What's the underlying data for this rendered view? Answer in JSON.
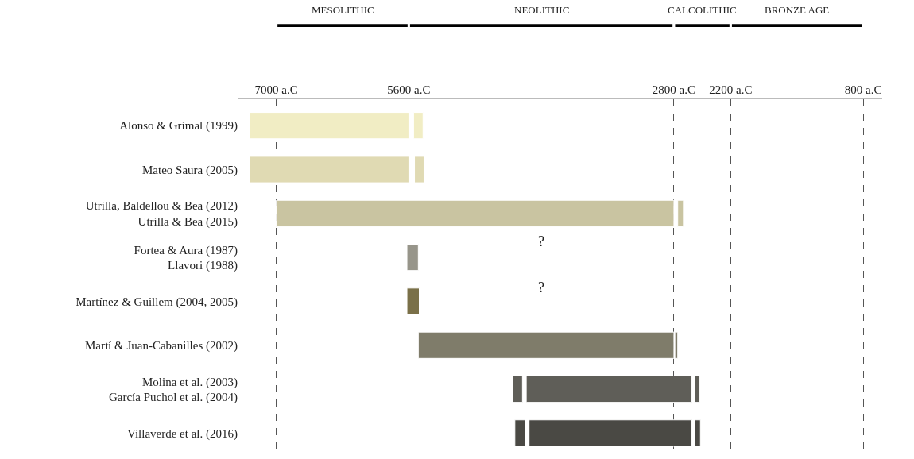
{
  "chart_data": {
    "type": "bar",
    "orientation": "horizontal",
    "categories": [
      "Alonso & Grimal (1999)",
      "Mateo Saura (2005)",
      "Utrilla, Baldellou & Bea (2012)\nUtrilla & Bea (2015)",
      "Fortea & Aura (1987)\nLlavori (1988)",
      "Martínez & Guillem (2004, 2005)",
      "Martí & Juan-Cabanilles (2002)",
      "Molina et al. (2003)\nGarcía Puchol et al. (2004)",
      "Villaverde et al. (2016)"
    ],
    "series": [
      {
        "colors": [
          "#f1edc4",
          "#e0dab3",
          "#c9c4a1",
          "#97958a",
          "#7a7048",
          "#7f7c6a",
          "#5f5e58",
          "#4a4944"
        ],
        "base": [
          5600,
          5600,
          2800,
          5500,
          5490,
          2800,
          2610,
          2610
        ],
        "values": [
          1680,
          1680,
          4200,
          120,
          130,
          2700,
          1750,
          1720
        ]
      },
      {
        "colors": [
          "#f1edc4",
          "#e0dab3",
          "#c9c4a1",
          "#97958a",
          "#7a7048",
          "#7f7c6a",
          "#5f5e58",
          "#4a4944"
        ],
        "base": [
          5450,
          5440,
          2700,
          null,
          null,
          2760,
          2530,
          2520
        ],
        "values": [
          100,
          100,
          60,
          null,
          null,
          30,
          50,
          60
        ]
      },
      {
        "colors": [
          "#f1edc4",
          "#e0dab3",
          "#c9c4a1",
          "#97958a",
          "#7a7048",
          "#7f7c6a",
          "#5f5e58",
          "#4a4944"
        ],
        "base": [
          null,
          null,
          null,
          null,
          null,
          null,
          4400,
          4370
        ],
        "values": [
          null,
          null,
          null,
          null,
          null,
          null,
          100,
          110
        ]
      }
    ],
    "xlim": [
      7400,
      600
    ],
    "xticks": [
      {
        "value": 7000,
        "label": "7000 a.C"
      },
      {
        "value": 5600,
        "label": "5600 a.C"
      },
      {
        "value": 2800,
        "label": "2800 a.C"
      },
      {
        "value": 2200,
        "label": "2200 a.C"
      },
      {
        "value": 800,
        "label": "800 a.C"
      }
    ],
    "grid": "x",
    "line_style": "dashed",
    "annotations": [
      "MESOLITHIC",
      "NEOLITHIC",
      "CALCOLITHIC",
      "BRONZE AGE",
      "?",
      "?"
    ]
  }
}
